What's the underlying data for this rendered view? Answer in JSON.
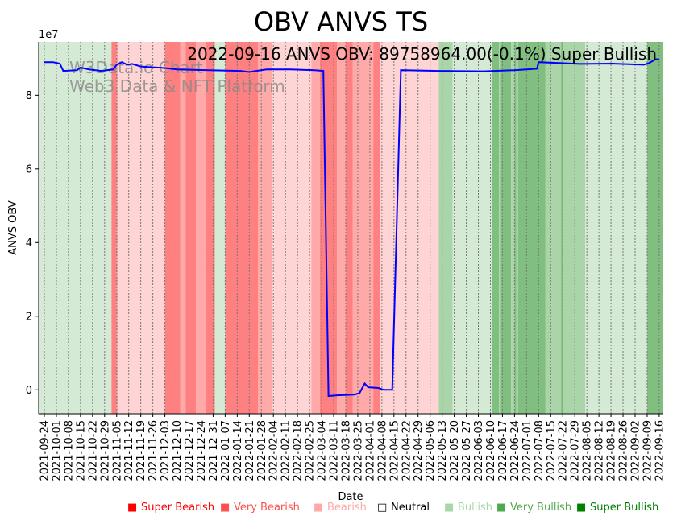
{
  "chart_data": {
    "type": "line",
    "title": "OBV ANVS TS",
    "xlabel": "Date",
    "ylabel": "ANVS OBV",
    "y_offset_label": "1e7",
    "annotation": "2022-09-16 ANVS OBV: 89758964.00(-0.1%) Super Bullish",
    "watermark": [
      "W3Data.io Chart",
      "Web3 Data & NFT Platform"
    ],
    "start_date": "2021-09-24",
    "ylim": [
      -6500000,
      94500000
    ],
    "y_ticks": [
      0,
      20000000,
      40000000,
      60000000,
      80000000
    ],
    "y_tick_labels": [
      "0",
      "2",
      "4",
      "6",
      "8"
    ],
    "x_tick_labels": [
      "2021-09-24",
      "2021-10-01",
      "2021-10-08",
      "2021-10-15",
      "2021-10-22",
      "2021-10-29",
      "2021-11-05",
      "2021-11-12",
      "2021-11-19",
      "2021-11-26",
      "2021-12-03",
      "2021-12-10",
      "2021-12-17",
      "2021-12-24",
      "2021-12-31",
      "2022-01-07",
      "2022-01-14",
      "2022-01-21",
      "2022-01-28",
      "2022-02-04",
      "2022-02-11",
      "2022-02-18",
      "2022-02-25",
      "2022-03-04",
      "2022-03-11",
      "2022-03-18",
      "2022-03-25",
      "2022-04-01",
      "2022-04-08",
      "2022-04-15",
      "2022-04-22",
      "2022-04-29",
      "2022-05-06",
      "2022-05-13",
      "2022-05-20",
      "2022-05-27",
      "2022-06-03",
      "2022-06-10",
      "2022-06-17",
      "2022-06-24",
      "2022-07-01",
      "2022-07-08",
      "2022-07-15",
      "2022-07-22",
      "2022-07-29",
      "2022-08-05",
      "2022-08-12",
      "2022-08-19",
      "2022-08-26",
      "2022-09-02",
      "2022-09-09",
      "2022-09-16"
    ],
    "series": [
      {
        "name": "OBV",
        "color": "#0000ff",
        "points": [
          [
            "2021-09-24",
            89000000
          ],
          [
            "2021-09-29",
            89000000
          ],
          [
            "2021-10-03",
            88600000
          ],
          [
            "2021-10-05",
            86600000
          ],
          [
            "2021-10-13",
            86800000
          ],
          [
            "2021-10-15",
            87500000
          ],
          [
            "2021-10-20",
            87000000
          ],
          [
            "2021-10-27",
            86600000
          ],
          [
            "2021-11-03",
            87000000
          ],
          [
            "2021-11-05",
            88300000
          ],
          [
            "2021-11-08",
            89000000
          ],
          [
            "2021-11-11",
            88300000
          ],
          [
            "2021-11-14",
            88500000
          ],
          [
            "2021-11-19",
            87800000
          ],
          [
            "2021-11-26",
            87600000
          ],
          [
            "2021-12-03",
            87400000
          ],
          [
            "2021-12-10",
            87000000
          ],
          [
            "2021-12-29",
            86800000
          ],
          [
            "2022-01-16",
            86600000
          ],
          [
            "2022-01-21",
            86300000
          ],
          [
            "2022-01-25",
            86600000
          ],
          [
            "2022-01-31",
            87000000
          ],
          [
            "2022-02-14",
            87000000
          ],
          [
            "2022-02-28",
            86800000
          ],
          [
            "2022-03-05",
            86600000
          ],
          [
            "2022-03-08",
            -1700000
          ],
          [
            "2022-03-13",
            -1500000
          ],
          [
            "2022-03-23",
            -1300000
          ],
          [
            "2022-03-26",
            -900000
          ],
          [
            "2022-03-29",
            1700000
          ],
          [
            "2022-03-31",
            700000
          ],
          [
            "2022-04-06",
            500000
          ],
          [
            "2022-04-09",
            0
          ],
          [
            "2022-04-14",
            0
          ],
          [
            "2022-04-19",
            86800000
          ],
          [
            "2022-05-11",
            86600000
          ],
          [
            "2022-06-06",
            86500000
          ],
          [
            "2022-06-24",
            86800000
          ],
          [
            "2022-07-07",
            87200000
          ],
          [
            "2022-07-08",
            89000000
          ],
          [
            "2022-08-01",
            88500000
          ],
          [
            "2022-08-20",
            88600000
          ],
          [
            "2022-09-07",
            88300000
          ],
          [
            "2022-09-10",
            88700000
          ],
          [
            "2022-09-14",
            89800000
          ],
          [
            "2022-09-16",
            89758964
          ]
        ]
      }
    ],
    "sentiment_bands": [
      [
        "2021-09-21",
        "2021-11-02",
        "bullish"
      ],
      [
        "2021-11-02",
        "2021-11-05",
        "super_bearish"
      ],
      [
        "2021-11-05",
        "2021-11-06",
        "very_bearish"
      ],
      [
        "2021-11-06",
        "2021-12-03",
        "bearish"
      ],
      [
        "2021-12-03",
        "2021-12-12",
        "super_bearish"
      ],
      [
        "2021-12-12",
        "2021-12-15",
        "very_bearish"
      ],
      [
        "2021-12-15",
        "2021-12-21",
        "super_bearish"
      ],
      [
        "2021-12-21",
        "2021-12-27",
        "very_bearish"
      ],
      [
        "2021-12-27",
        "2022-01-01",
        "super_bearish"
      ],
      [
        "2022-01-01",
        "2022-01-07",
        "bullish"
      ],
      [
        "2022-01-07",
        "2022-01-26",
        "super_bearish"
      ],
      [
        "2022-01-26",
        "2022-02-03",
        "very_bearish"
      ],
      [
        "2022-02-03",
        "2022-02-26",
        "bearish"
      ],
      [
        "2022-02-26",
        "2022-03-03",
        "very_bearish"
      ],
      [
        "2022-03-03",
        "2022-03-13",
        "super_bearish"
      ],
      [
        "2022-03-13",
        "2022-03-18",
        "very_bearish"
      ],
      [
        "2022-03-18",
        "2022-03-22",
        "super_bearish"
      ],
      [
        "2022-03-22",
        "2022-04-03",
        "very_bearish"
      ],
      [
        "2022-04-03",
        "2022-04-07",
        "super_bearish"
      ],
      [
        "2022-04-07",
        "2022-05-11",
        "bearish"
      ],
      [
        "2022-05-11",
        "2022-05-19",
        "very_bullish"
      ],
      [
        "2022-05-19",
        "2022-06-11",
        "bullish"
      ],
      [
        "2022-06-11",
        "2022-06-15",
        "super_bullish"
      ],
      [
        "2022-06-15",
        "2022-06-16",
        "very_bullish"
      ],
      [
        "2022-06-16",
        "2022-06-22",
        "super_bullish"
      ],
      [
        "2022-06-22",
        "2022-06-24",
        "very_bullish"
      ],
      [
        "2022-06-24",
        "2022-06-25",
        "super_bullish"
      ],
      [
        "2022-06-25",
        "2022-06-26",
        "very_bullish"
      ],
      [
        "2022-06-26",
        "2022-07-12",
        "super_bullish"
      ],
      [
        "2022-07-12",
        "2022-07-21",
        "very_bullish"
      ],
      [
        "2022-07-21",
        "2022-07-22",
        "super_bullish"
      ],
      [
        "2022-07-22",
        "2022-08-04",
        "very_bullish"
      ],
      [
        "2022-08-04",
        "2022-09-09",
        "bullish"
      ],
      [
        "2022-09-09",
        "2022-09-19",
        "super_bullish"
      ]
    ],
    "band_colors": {
      "super_bearish": "#ff8080",
      "very_bearish": "#ffa9a9",
      "bearish": "#ffd4d4",
      "bullish": "#d4ead4",
      "very_bullish": "#a9d5a9",
      "super_bullish": "#81bf81"
    },
    "legend": [
      {
        "label": "Super Bearish",
        "color": "#ff0000",
        "marker": "■"
      },
      {
        "label": "Very Bearish",
        "color": "#ff5050",
        "marker": "■"
      },
      {
        "label": "Bearish",
        "color": "#ffa8a8",
        "marker": "■"
      },
      {
        "label": "Neutral",
        "color": "#000000",
        "marker": "□"
      },
      {
        "label": "Bullish",
        "color": "#a8d8a8",
        "marker": "■"
      },
      {
        "label": "Very Bullish",
        "color": "#50a850",
        "marker": "■"
      },
      {
        "label": "Super Bullish",
        "color": "#008000",
        "marker": "■"
      }
    ]
  }
}
